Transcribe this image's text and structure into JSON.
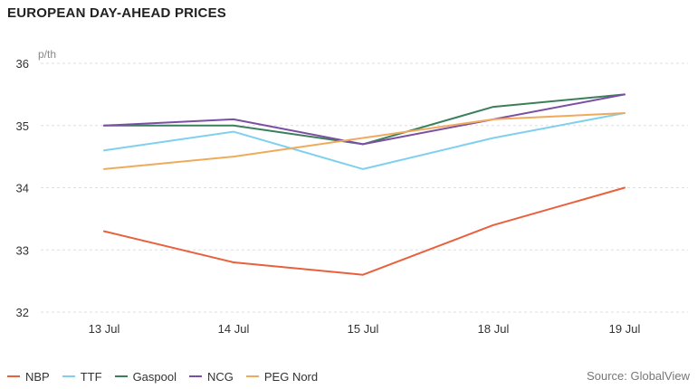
{
  "title": "EUROPEAN DAY-AHEAD PRICES",
  "source": "Source: GlobalView",
  "chart_data": {
    "type": "line",
    "title": "EUROPEAN DAY-AHEAD PRICES",
    "ylabel": "p/th",
    "xlabel": "",
    "categories": [
      "13 Jul",
      "14 Jul",
      "15 Jul",
      "18 Jul",
      "19 Jul"
    ],
    "ylim": [
      32,
      36
    ],
    "yticks": [
      32,
      33,
      34,
      35,
      36
    ],
    "grid": "horizontal dashed",
    "legend_position": "bottom-left",
    "series": [
      {
        "name": "NBP",
        "color": "#e8603c",
        "values": [
          33.3,
          32.8,
          32.6,
          33.4,
          34.0
        ]
      },
      {
        "name": "TTF",
        "color": "#7fd0ee",
        "values": [
          34.6,
          34.9,
          34.3,
          34.8,
          35.2
        ]
      },
      {
        "name": "Gaspool",
        "color": "#3a7f5a",
        "values": [
          35.0,
          35.0,
          34.7,
          35.3,
          35.5
        ]
      },
      {
        "name": "NCG",
        "color": "#7b4fa3",
        "values": [
          35.0,
          35.1,
          34.7,
          35.1,
          35.5
        ]
      },
      {
        "name": "PEG Nord",
        "color": "#f0aa5c",
        "values": [
          34.3,
          34.5,
          34.8,
          35.1,
          35.2
        ]
      }
    ]
  }
}
